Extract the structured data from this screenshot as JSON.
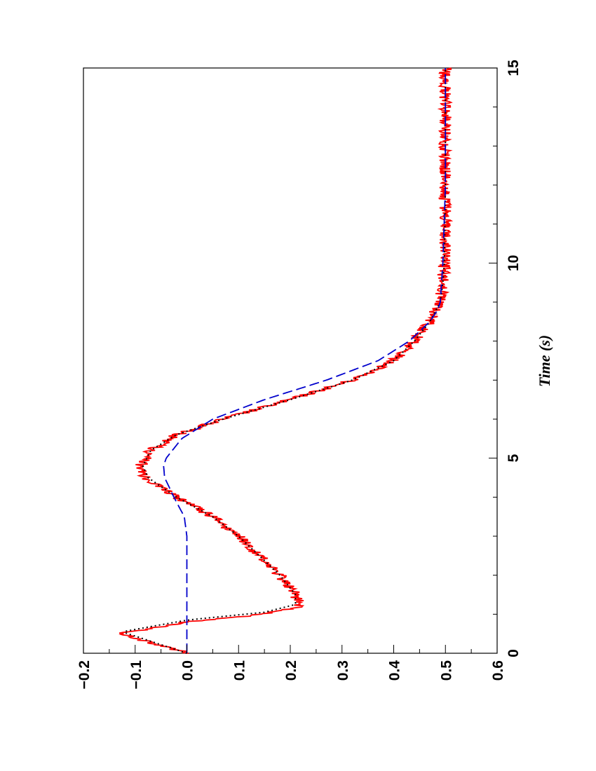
{
  "chart_data": {
    "type": "line",
    "orientation": "rotated-90-clockwise",
    "xlabel": "Time (s)",
    "ylabel": "",
    "xlim": [
      0,
      15
    ],
    "ylim": [
      -0.2,
      0.6
    ],
    "x_ticks": [
      "0",
      "5",
      "10",
      "15"
    ],
    "y_ticks": [
      "−0.2",
      "−0.1",
      "0.0",
      "0.1",
      "0.2",
      "0.3",
      "0.4",
      "0.5",
      "0.6"
    ],
    "grid": false,
    "series": [
      {
        "style": "noisy solid",
        "color": "#ff0000",
        "x": [
          0,
          0.5,
          0.8,
          1.0,
          1.2,
          1.5,
          2.0,
          2.5,
          3.0,
          3.5,
          4.0,
          4.5,
          4.8,
          5.2,
          5.6,
          6.0,
          6.5,
          7.0,
          7.5,
          8.0,
          8.5,
          9.0,
          9.5,
          10,
          11,
          12,
          13,
          14,
          15
        ],
        "y": [
          0.0,
          -0.13,
          0.0,
          0.15,
          0.22,
          0.21,
          0.18,
          0.14,
          0.1,
          0.05,
          -0.02,
          -0.08,
          -0.09,
          -0.07,
          -0.02,
          0.07,
          0.2,
          0.32,
          0.4,
          0.44,
          0.47,
          0.49,
          0.495,
          0.498,
          0.5,
          0.5,
          0.5,
          0.5,
          0.5
        ]
      },
      {
        "style": "dotted",
        "color": "#000000",
        "x": [
          0,
          0.55,
          0.85,
          1.05,
          1.25,
          1.5,
          2.0,
          2.5,
          3.0,
          3.5,
          4.0,
          4.5,
          4.8,
          5.2,
          5.6,
          6.0,
          6.5,
          7.0,
          7.5,
          8.0,
          8.5,
          9.0,
          9.5,
          10,
          12,
          15
        ],
        "y": [
          0.0,
          -0.125,
          0.0,
          0.15,
          0.21,
          0.21,
          0.18,
          0.14,
          0.1,
          0.05,
          -0.02,
          -0.075,
          -0.085,
          -0.07,
          -0.02,
          0.07,
          0.2,
          0.32,
          0.4,
          0.44,
          0.47,
          0.49,
          0.495,
          0.498,
          0.5,
          0.5
        ]
      },
      {
        "style": "dashed",
        "color": "#0000cc",
        "x": [
          0,
          3.0,
          3.5,
          4.0,
          4.5,
          4.8,
          5.0,
          5.5,
          6.0,
          6.5,
          7.0,
          7.5,
          8.0,
          8.5,
          8.8,
          9.0,
          10,
          12,
          15
        ],
        "y": [
          0.0,
          0.0,
          -0.005,
          -0.025,
          -0.043,
          -0.045,
          -0.04,
          -0.01,
          0.05,
          0.15,
          0.27,
          0.37,
          0.43,
          0.47,
          0.485,
          0.49,
          0.495,
          0.5,
          0.5
        ]
      }
    ]
  }
}
